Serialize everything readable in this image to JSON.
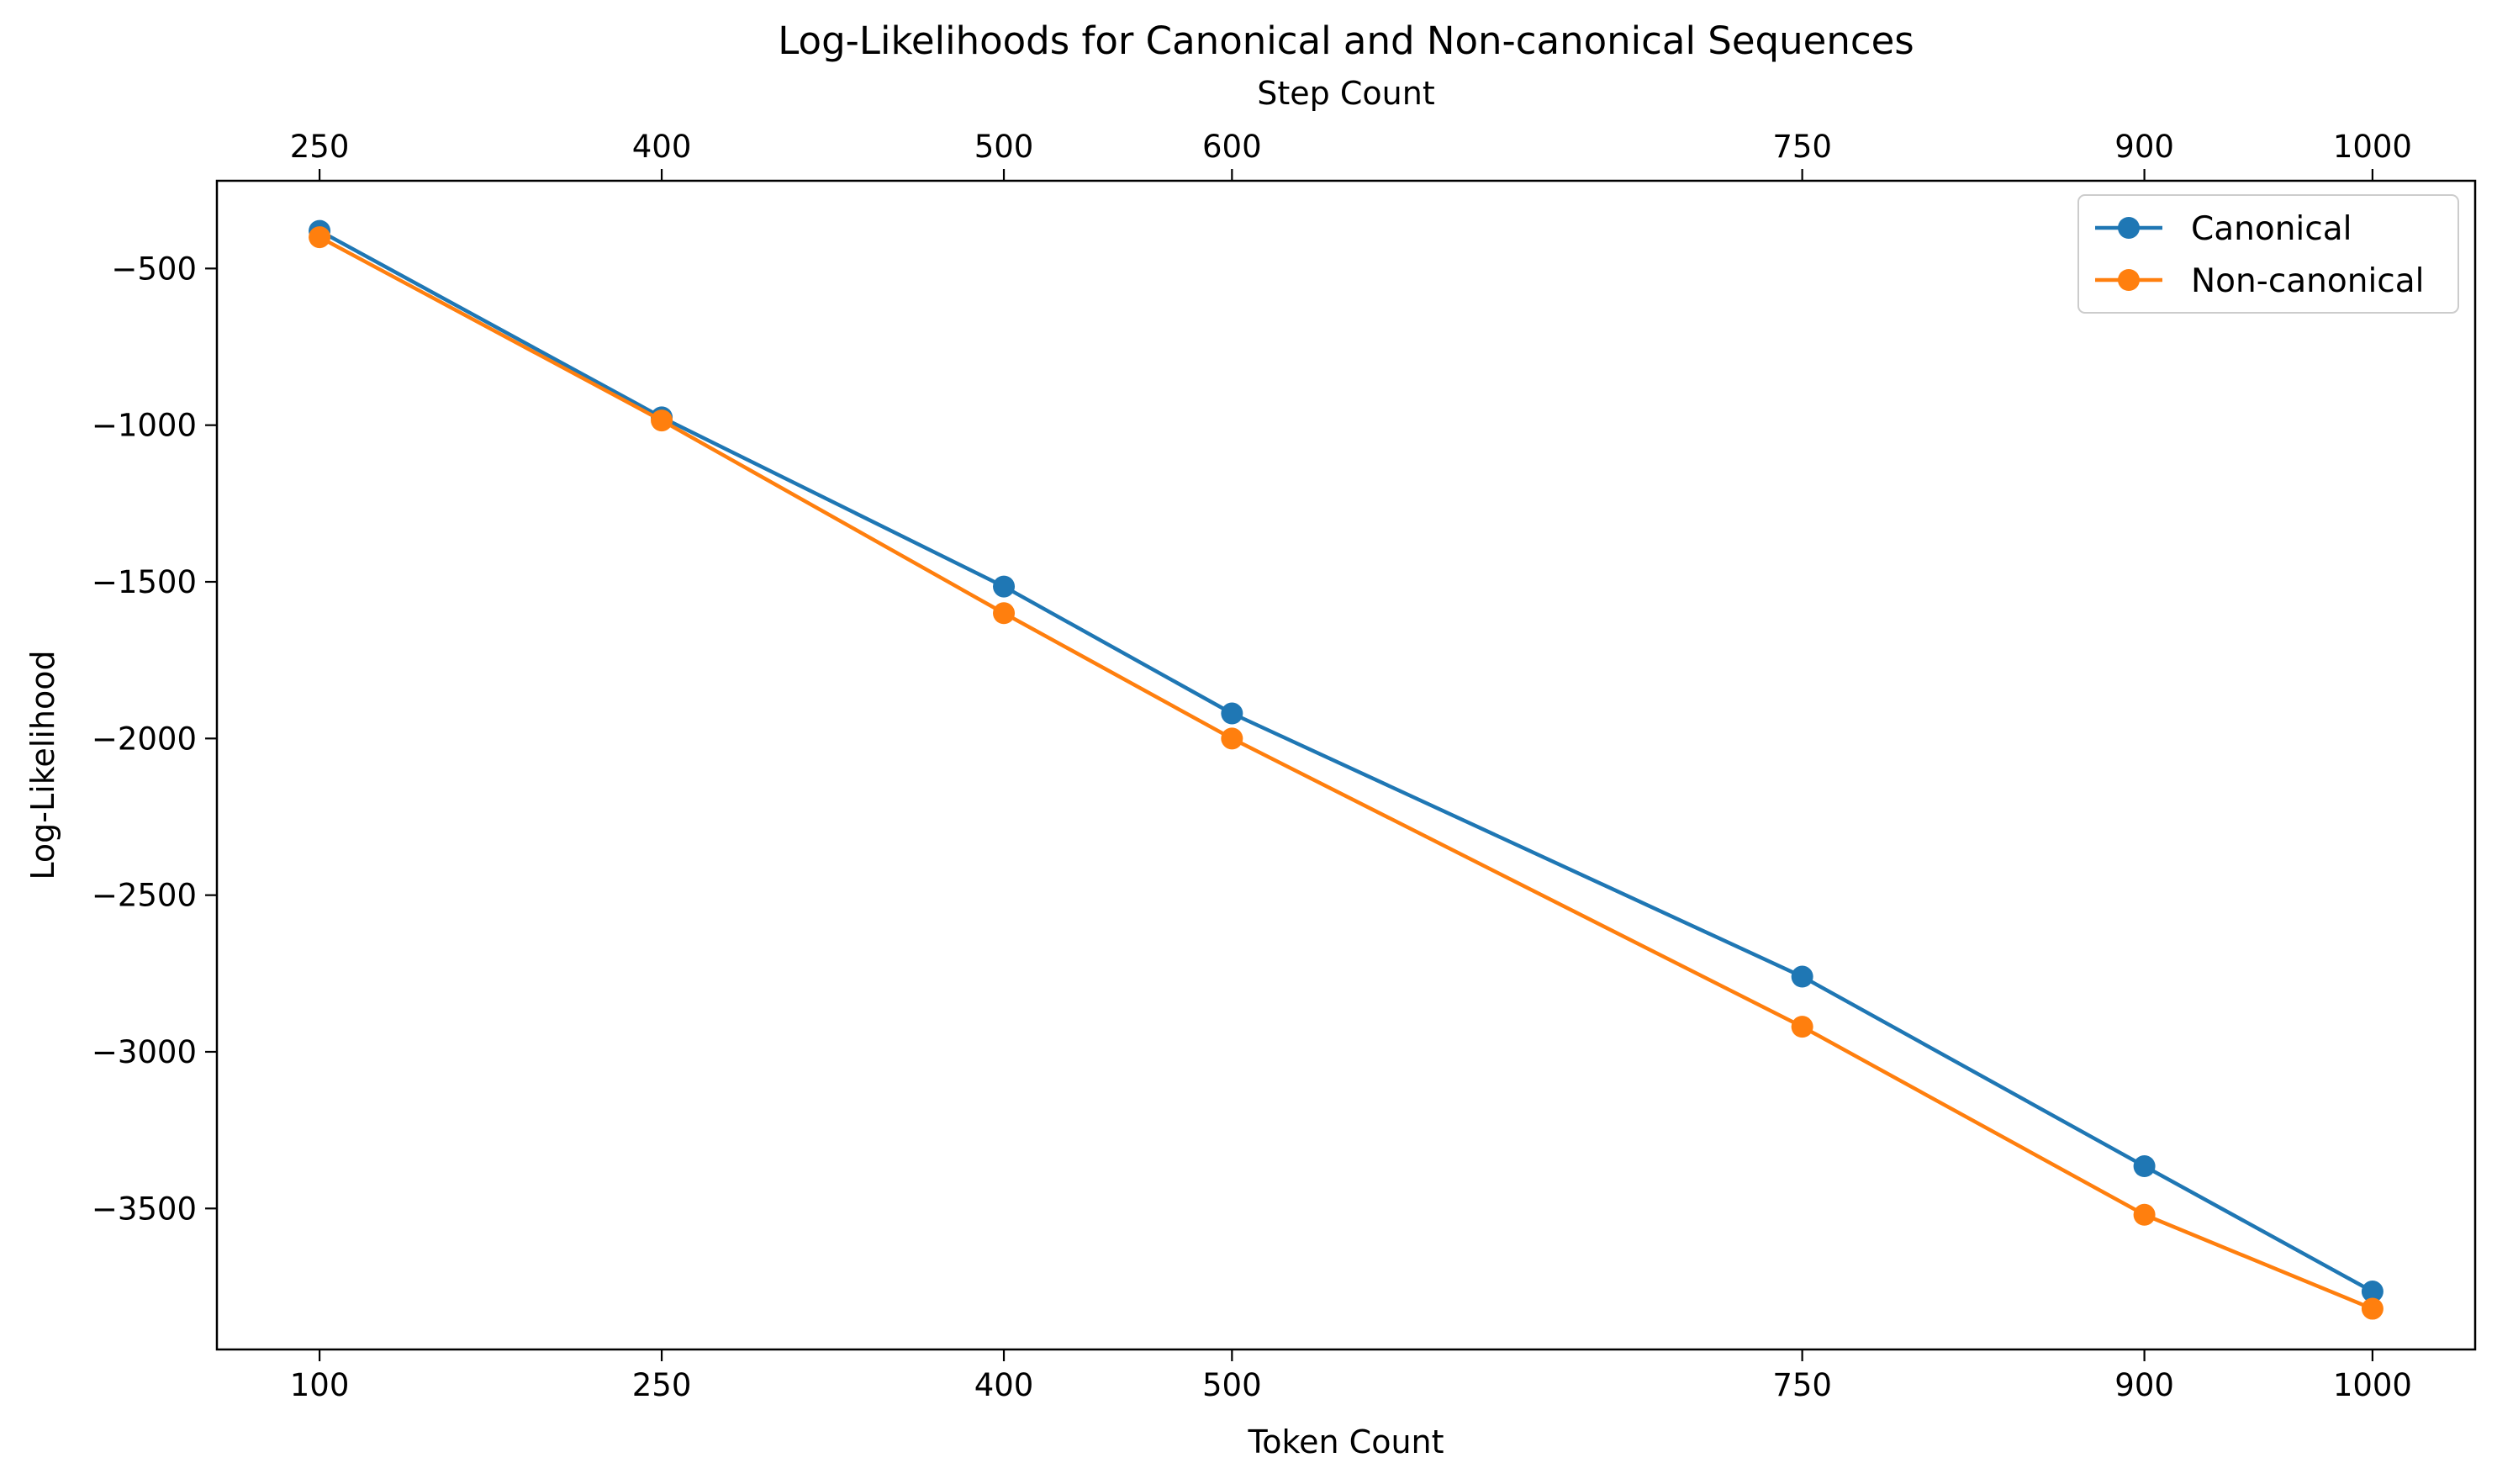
{
  "chart_data": {
    "type": "line",
    "title": "Log-Likelihoods for Canonical and Non-canonical Sequences",
    "xlabel": "Token Count",
    "x2label": "Step Count",
    "ylabel": "Log-Likelihood",
    "x": [
      100,
      250,
      400,
      500,
      750,
      900,
      1000
    ],
    "x_tick_labels": [
      "100",
      "250",
      "400",
      "500",
      "750",
      "900",
      "1000"
    ],
    "x2_tick_labels": [
      "250",
      "400",
      "500",
      "600",
      "750",
      "900",
      "1000"
    ],
    "xlim": [
      55,
      1045
    ],
    "ylim": [
      -3950,
      -220
    ],
    "y_ticks": [
      -500,
      -1000,
      -1500,
      -2000,
      -2500,
      -3000,
      -3500
    ],
    "y_tick_labels": [
      "−500",
      "−1000",
      "−1500",
      "−2000",
      "−2500",
      "−3000",
      "−3500"
    ],
    "grid": false,
    "legend_position": "top-right",
    "series": [
      {
        "name": "Canonical",
        "color": "#1f77b4",
        "values": [
          -380,
          -975,
          -1515,
          -1920,
          -2760,
          -3365,
          -3765
        ]
      },
      {
        "name": "Non-canonical",
        "color": "#ff7f0e",
        "values": [
          -400,
          -985,
          -1600,
          -2000,
          -2920,
          -3520,
          -3820
        ]
      }
    ]
  }
}
